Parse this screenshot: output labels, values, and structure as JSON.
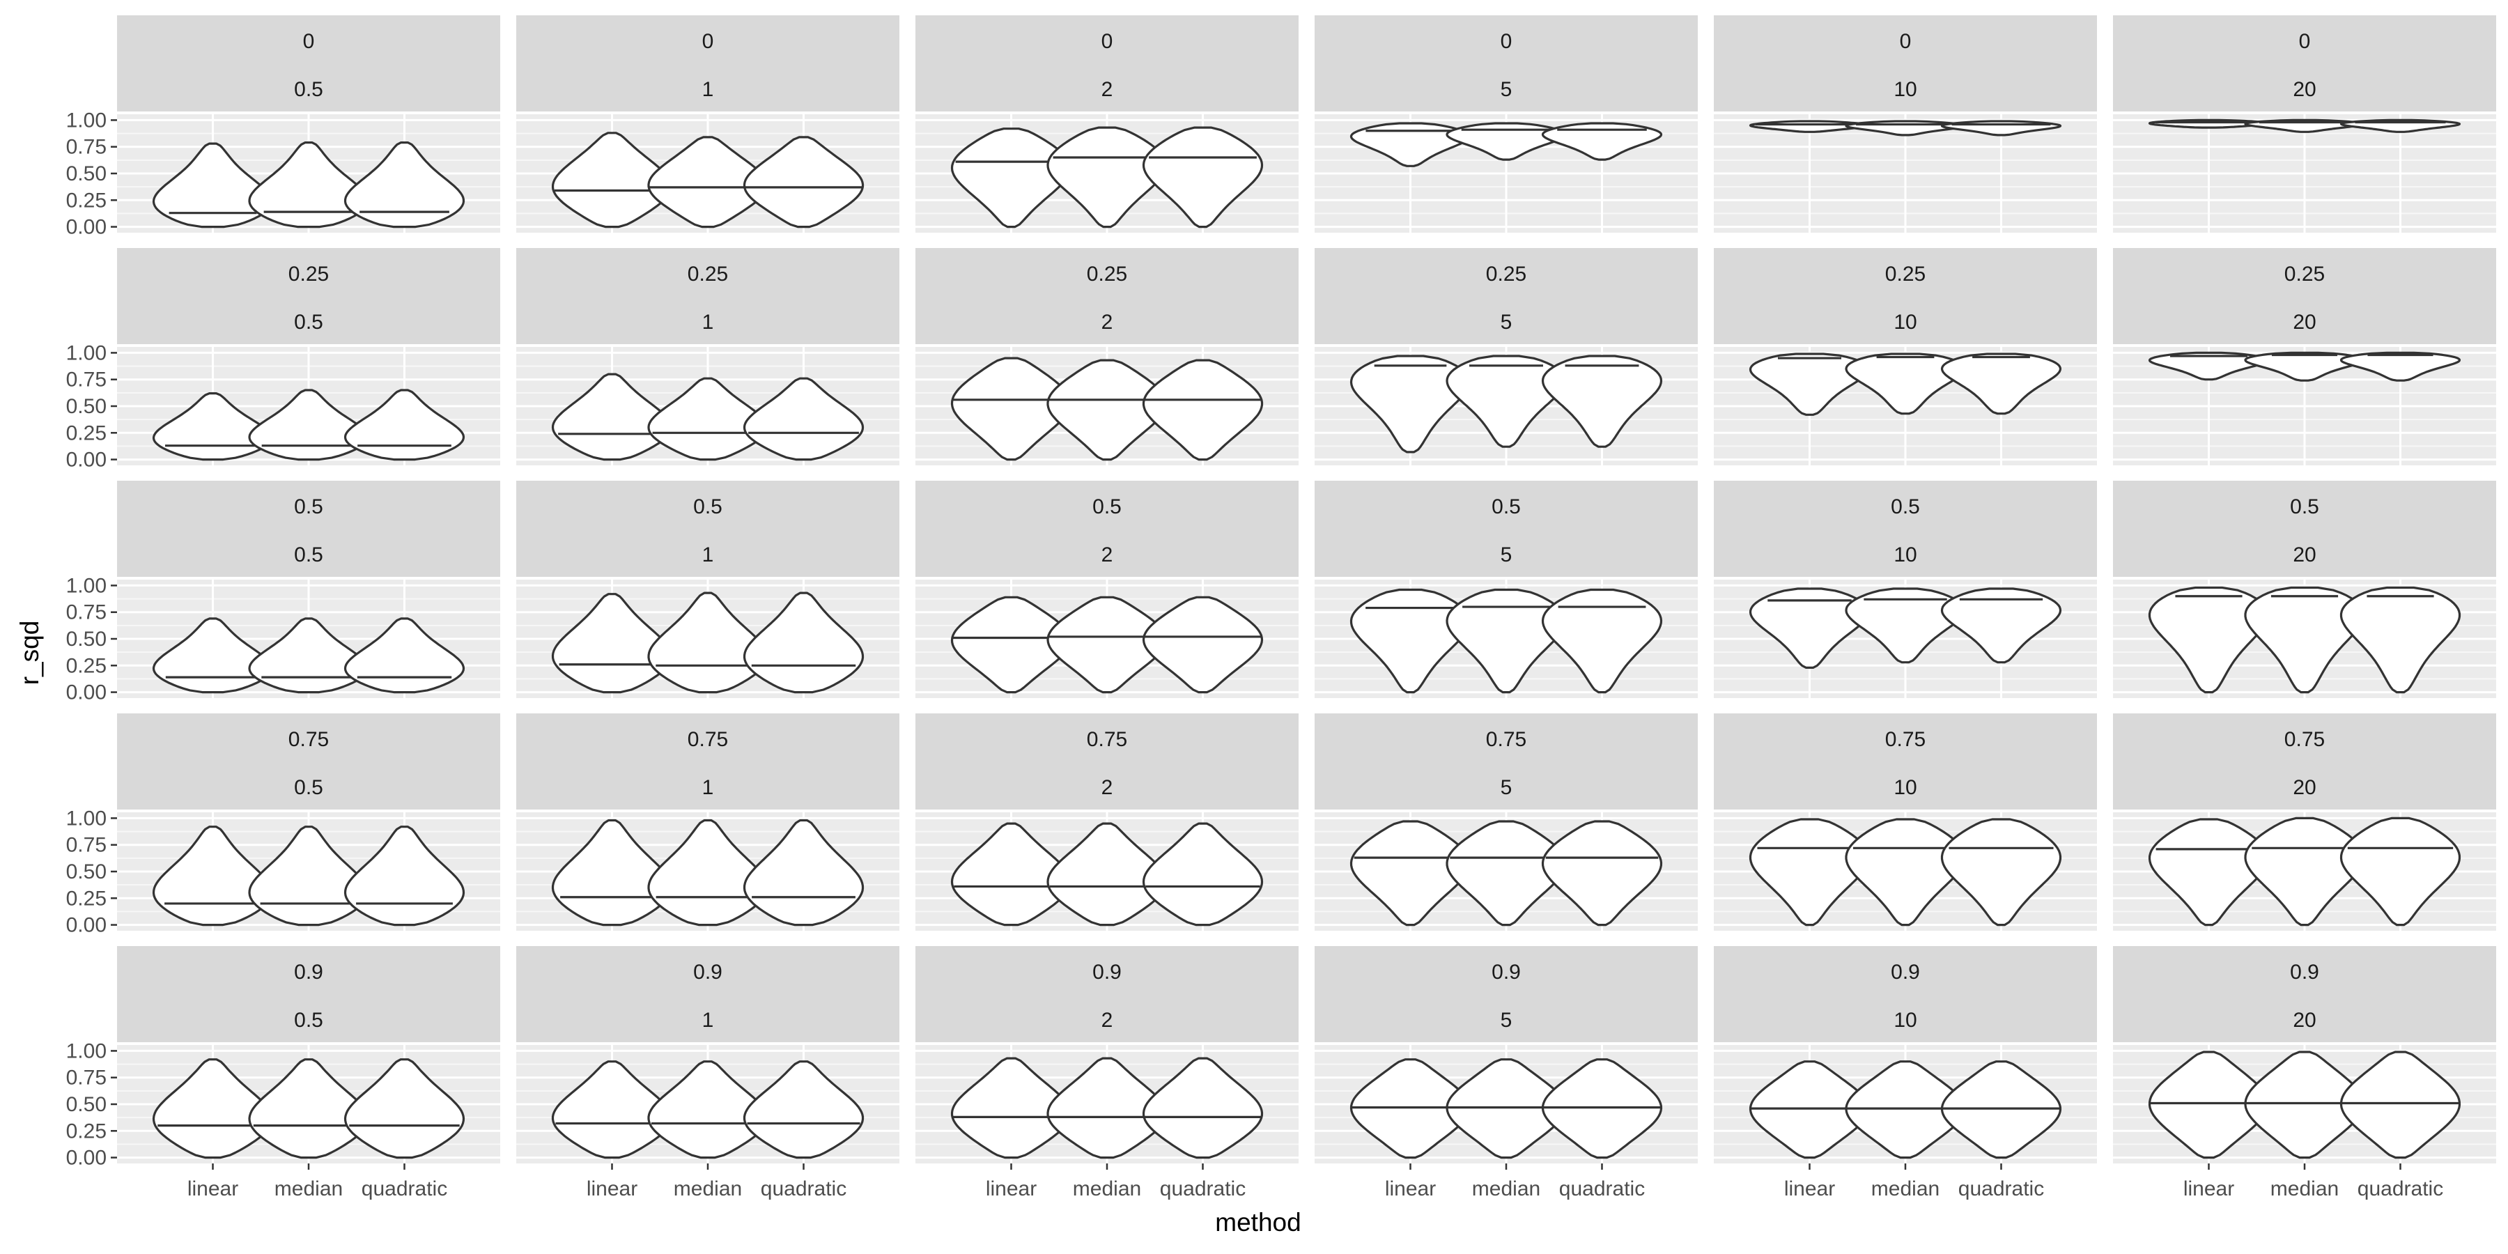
{
  "chart_data": {
    "type": "violin",
    "facet_rows_label_values": [
      "0",
      "0.25",
      "0.5",
      "0.75",
      "0.9"
    ],
    "facet_cols_label_values": [
      "0.5",
      "1",
      "2",
      "5",
      "10",
      "20"
    ],
    "x_categories": [
      "linear",
      "median",
      "quadratic"
    ],
    "xlabel": "method",
    "ylabel": "r_sqd",
    "ylim": [
      0,
      1
    ],
    "y_ticks": [
      "0.00",
      "0.25",
      "0.50",
      "0.75",
      "1.00"
    ],
    "grid": true,
    "violin_fill": "#ffffff",
    "violin_stroke": "#333333",
    "panel_background": "#ebebeb",
    "strip_background": "#d9d9d9",
    "panels": [
      {
        "row": "0",
        "col": "0.5",
        "violins": [
          {
            "method": "linear",
            "min": 0.0,
            "max": 0.78,
            "median": 0.13
          },
          {
            "method": "median",
            "min": 0.0,
            "max": 0.79,
            "median": 0.14
          },
          {
            "method": "quadratic",
            "min": 0.0,
            "max": 0.79,
            "median": 0.14
          }
        ]
      },
      {
        "row": "0",
        "col": "1",
        "violins": [
          {
            "method": "linear",
            "min": 0.0,
            "max": 0.88,
            "median": 0.34
          },
          {
            "method": "median",
            "min": 0.0,
            "max": 0.84,
            "median": 0.37
          },
          {
            "method": "quadratic",
            "min": 0.0,
            "max": 0.84,
            "median": 0.37
          }
        ]
      },
      {
        "row": "0",
        "col": "2",
        "violins": [
          {
            "method": "linear",
            "min": 0.0,
            "max": 0.92,
            "median": 0.61
          },
          {
            "method": "median",
            "min": 0.0,
            "max": 0.93,
            "median": 0.65
          },
          {
            "method": "quadratic",
            "min": 0.0,
            "max": 0.93,
            "median": 0.65
          }
        ]
      },
      {
        "row": "0",
        "col": "5",
        "violins": [
          {
            "method": "linear",
            "min": 0.57,
            "max": 0.97,
            "median": 0.9
          },
          {
            "method": "median",
            "min": 0.63,
            "max": 0.97,
            "median": 0.91
          },
          {
            "method": "quadratic",
            "min": 0.63,
            "max": 0.97,
            "median": 0.91
          }
        ]
      },
      {
        "row": "0",
        "col": "10",
        "violins": [
          {
            "method": "linear",
            "min": 0.89,
            "max": 0.99,
            "median": 0.96
          },
          {
            "method": "median",
            "min": 0.86,
            "max": 0.99,
            "median": 0.96
          },
          {
            "method": "quadratic",
            "min": 0.86,
            "max": 0.99,
            "median": 0.96
          }
        ]
      },
      {
        "row": "0",
        "col": "20",
        "violins": [
          {
            "method": "linear",
            "min": 0.93,
            "max": 1.0,
            "median": 0.98
          },
          {
            "method": "median",
            "min": 0.89,
            "max": 1.0,
            "median": 0.98
          },
          {
            "method": "quadratic",
            "min": 0.89,
            "max": 1.0,
            "median": 0.98
          }
        ]
      },
      {
        "row": "0.25",
        "col": "0.5",
        "violins": [
          {
            "method": "linear",
            "min": 0.0,
            "max": 0.62,
            "median": 0.13
          },
          {
            "method": "median",
            "min": 0.0,
            "max": 0.65,
            "median": 0.13
          },
          {
            "method": "quadratic",
            "min": 0.0,
            "max": 0.65,
            "median": 0.13
          }
        ]
      },
      {
        "row": "0.25",
        "col": "1",
        "violins": [
          {
            "method": "linear",
            "min": 0.0,
            "max": 0.8,
            "median": 0.24
          },
          {
            "method": "median",
            "min": 0.0,
            "max": 0.76,
            "median": 0.25
          },
          {
            "method": "quadratic",
            "min": 0.0,
            "max": 0.76,
            "median": 0.25
          }
        ]
      },
      {
        "row": "0.25",
        "col": "2",
        "violins": [
          {
            "method": "linear",
            "min": 0.0,
            "max": 0.95,
            "median": 0.56
          },
          {
            "method": "median",
            "min": 0.0,
            "max": 0.93,
            "median": 0.56
          },
          {
            "method": "quadratic",
            "min": 0.0,
            "max": 0.93,
            "median": 0.56
          }
        ]
      },
      {
        "row": "0.25",
        "col": "5",
        "violins": [
          {
            "method": "linear",
            "min": 0.07,
            "max": 0.97,
            "median": 0.88
          },
          {
            "method": "median",
            "min": 0.12,
            "max": 0.97,
            "median": 0.88
          },
          {
            "method": "quadratic",
            "min": 0.12,
            "max": 0.97,
            "median": 0.88
          }
        ]
      },
      {
        "row": "0.25",
        "col": "10",
        "violins": [
          {
            "method": "linear",
            "min": 0.42,
            "max": 0.99,
            "median": 0.95
          },
          {
            "method": "median",
            "min": 0.43,
            "max": 0.99,
            "median": 0.96
          },
          {
            "method": "quadratic",
            "min": 0.43,
            "max": 0.99,
            "median": 0.96
          }
        ]
      },
      {
        "row": "0.25",
        "col": "20",
        "violins": [
          {
            "method": "linear",
            "min": 0.75,
            "max": 1.0,
            "median": 0.97
          },
          {
            "method": "median",
            "min": 0.74,
            "max": 1.0,
            "median": 0.98
          },
          {
            "method": "quadratic",
            "min": 0.74,
            "max": 1.0,
            "median": 0.98
          }
        ]
      },
      {
        "row": "0.5",
        "col": "0.5",
        "violins": [
          {
            "method": "linear",
            "min": 0.0,
            "max": 0.69,
            "median": 0.14
          },
          {
            "method": "median",
            "min": 0.0,
            "max": 0.69,
            "median": 0.14
          },
          {
            "method": "quadratic",
            "min": 0.0,
            "max": 0.69,
            "median": 0.14
          }
        ]
      },
      {
        "row": "0.5",
        "col": "1",
        "violins": [
          {
            "method": "linear",
            "min": 0.0,
            "max": 0.92,
            "median": 0.26
          },
          {
            "method": "median",
            "min": 0.0,
            "max": 0.93,
            "median": 0.25
          },
          {
            "method": "quadratic",
            "min": 0.0,
            "max": 0.93,
            "median": 0.25
          }
        ]
      },
      {
        "row": "0.5",
        "col": "2",
        "violins": [
          {
            "method": "linear",
            "min": 0.0,
            "max": 0.89,
            "median": 0.51
          },
          {
            "method": "median",
            "min": 0.0,
            "max": 0.89,
            "median": 0.52
          },
          {
            "method": "quadratic",
            "min": 0.0,
            "max": 0.89,
            "median": 0.52
          }
        ]
      },
      {
        "row": "0.5",
        "col": "5",
        "violins": [
          {
            "method": "linear",
            "min": 0.0,
            "max": 0.96,
            "median": 0.79
          },
          {
            "method": "median",
            "min": 0.0,
            "max": 0.96,
            "median": 0.8
          },
          {
            "method": "quadratic",
            "min": 0.0,
            "max": 0.96,
            "median": 0.8
          }
        ]
      },
      {
        "row": "0.5",
        "col": "10",
        "violins": [
          {
            "method": "linear",
            "min": 0.23,
            "max": 0.97,
            "median": 0.86
          },
          {
            "method": "median",
            "min": 0.28,
            "max": 0.97,
            "median": 0.87
          },
          {
            "method": "quadratic",
            "min": 0.28,
            "max": 0.97,
            "median": 0.87
          }
        ]
      },
      {
        "row": "0.5",
        "col": "20",
        "violins": [
          {
            "method": "linear",
            "min": 0.0,
            "max": 0.98,
            "median": 0.9
          },
          {
            "method": "median",
            "min": 0.0,
            "max": 0.98,
            "median": 0.9
          },
          {
            "method": "quadratic",
            "min": 0.0,
            "max": 0.98,
            "median": 0.9
          }
        ]
      },
      {
        "row": "0.75",
        "col": "0.5",
        "violins": [
          {
            "method": "linear",
            "min": 0.0,
            "max": 0.92,
            "median": 0.2
          },
          {
            "method": "median",
            "min": 0.0,
            "max": 0.92,
            "median": 0.2
          },
          {
            "method": "quadratic",
            "min": 0.0,
            "max": 0.92,
            "median": 0.2
          }
        ]
      },
      {
        "row": "0.75",
        "col": "1",
        "violins": [
          {
            "method": "linear",
            "min": 0.0,
            "max": 0.98,
            "median": 0.26
          },
          {
            "method": "median",
            "min": 0.0,
            "max": 0.98,
            "median": 0.26
          },
          {
            "method": "quadratic",
            "min": 0.0,
            "max": 0.98,
            "median": 0.26
          }
        ]
      },
      {
        "row": "0.75",
        "col": "2",
        "violins": [
          {
            "method": "linear",
            "min": 0.0,
            "max": 0.95,
            "median": 0.36
          },
          {
            "method": "median",
            "min": 0.0,
            "max": 0.95,
            "median": 0.36
          },
          {
            "method": "quadratic",
            "min": 0.0,
            "max": 0.95,
            "median": 0.36
          }
        ]
      },
      {
        "row": "0.75",
        "col": "5",
        "violins": [
          {
            "method": "linear",
            "min": 0.0,
            "max": 0.97,
            "median": 0.63
          },
          {
            "method": "median",
            "min": 0.0,
            "max": 0.97,
            "median": 0.63
          },
          {
            "method": "quadratic",
            "min": 0.0,
            "max": 0.97,
            "median": 0.63
          }
        ]
      },
      {
        "row": "0.75",
        "col": "10",
        "violins": [
          {
            "method": "linear",
            "min": 0.0,
            "max": 0.99,
            "median": 0.72
          },
          {
            "method": "median",
            "min": 0.0,
            "max": 0.99,
            "median": 0.72
          },
          {
            "method": "quadratic",
            "min": 0.0,
            "max": 0.99,
            "median": 0.72
          }
        ]
      },
      {
        "row": "0.75",
        "col": "20",
        "violins": [
          {
            "method": "linear",
            "min": 0.0,
            "max": 0.99,
            "median": 0.71
          },
          {
            "method": "median",
            "min": 0.0,
            "max": 1.0,
            "median": 0.72
          },
          {
            "method": "quadratic",
            "min": 0.0,
            "max": 1.0,
            "median": 0.72
          }
        ]
      },
      {
        "row": "0.9",
        "col": "0.5",
        "violins": [
          {
            "method": "linear",
            "min": 0.0,
            "max": 0.92,
            "median": 0.3
          },
          {
            "method": "median",
            "min": 0.0,
            "max": 0.92,
            "median": 0.3
          },
          {
            "method": "quadratic",
            "min": 0.0,
            "max": 0.92,
            "median": 0.3
          }
        ]
      },
      {
        "row": "0.9",
        "col": "1",
        "violins": [
          {
            "method": "linear",
            "min": 0.0,
            "max": 0.9,
            "median": 0.32
          },
          {
            "method": "median",
            "min": 0.0,
            "max": 0.9,
            "median": 0.32
          },
          {
            "method": "quadratic",
            "min": 0.0,
            "max": 0.9,
            "median": 0.32
          }
        ]
      },
      {
        "row": "0.9",
        "col": "2",
        "violins": [
          {
            "method": "linear",
            "min": 0.0,
            "max": 0.93,
            "median": 0.38
          },
          {
            "method": "median",
            "min": 0.0,
            "max": 0.93,
            "median": 0.38
          },
          {
            "method": "quadratic",
            "min": 0.0,
            "max": 0.93,
            "median": 0.38
          }
        ]
      },
      {
        "row": "0.9",
        "col": "5",
        "violins": [
          {
            "method": "linear",
            "min": 0.0,
            "max": 0.92,
            "median": 0.47
          },
          {
            "method": "median",
            "min": 0.0,
            "max": 0.92,
            "median": 0.47
          },
          {
            "method": "quadratic",
            "min": 0.0,
            "max": 0.92,
            "median": 0.47
          }
        ]
      },
      {
        "row": "0.9",
        "col": "10",
        "violins": [
          {
            "method": "linear",
            "min": 0.0,
            "max": 0.9,
            "median": 0.46
          },
          {
            "method": "median",
            "min": 0.0,
            "max": 0.9,
            "median": 0.46
          },
          {
            "method": "quadratic",
            "min": 0.0,
            "max": 0.9,
            "median": 0.46
          }
        ]
      },
      {
        "row": "0.9",
        "col": "20",
        "violins": [
          {
            "method": "linear",
            "min": 0.0,
            "max": 0.99,
            "median": 0.51
          },
          {
            "method": "median",
            "min": 0.0,
            "max": 0.99,
            "median": 0.51
          },
          {
            "method": "quadratic",
            "min": 0.0,
            "max": 0.99,
            "median": 0.51
          }
        ]
      }
    ]
  }
}
